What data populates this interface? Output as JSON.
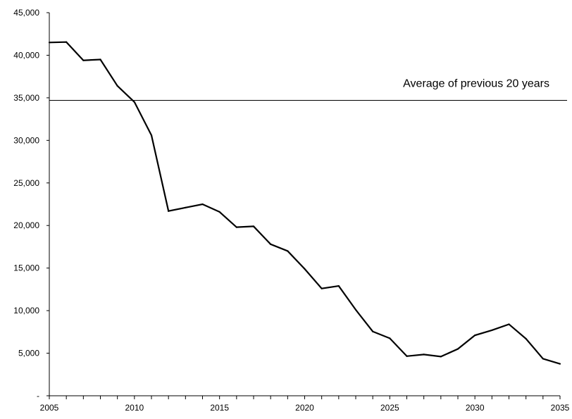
{
  "chart_data": {
    "type": "line",
    "title": "",
    "xlabel": "",
    "ylabel": "",
    "xlim": [
      2005,
      2035
    ],
    "ylim": [
      0,
      45000
    ],
    "x_ticks": [
      "2005",
      "2010",
      "2015",
      "2020",
      "2025",
      "2030",
      "2035"
    ],
    "y_ticks": [
      "-",
      "5,000",
      "10,000",
      "15,000",
      "20,000",
      "25,000",
      "30,000",
      "35,000",
      "40,000",
      "45,000"
    ],
    "grid": false,
    "legend": "none",
    "series": [
      {
        "color": "#000000",
        "x": [
          2005,
          2006,
          2007,
          2008,
          2009,
          2010,
          2011,
          2012,
          2013,
          2014,
          2015,
          2016,
          2017,
          2018,
          2019,
          2020,
          2021,
          2022,
          2023,
          2024,
          2025,
          2026,
          2027,
          2028,
          2029,
          2030,
          2031,
          2032,
          2033,
          2034,
          2035
        ],
        "values": [
          41500,
          41550,
          39400,
          39500,
          36400,
          34500,
          30600,
          21700,
          22100,
          22500,
          21600,
          19800,
          19900,
          17800,
          17000,
          14900,
          12600,
          12900,
          10100,
          7550,
          6750,
          4650,
          4850,
          4600,
          5500,
          7100,
          7700,
          8400,
          6700,
          4350,
          3750
        ]
      }
    ],
    "reference_line": {
      "value": 34700,
      "label": "Average of previous 20 years",
      "color": "#000000"
    }
  }
}
